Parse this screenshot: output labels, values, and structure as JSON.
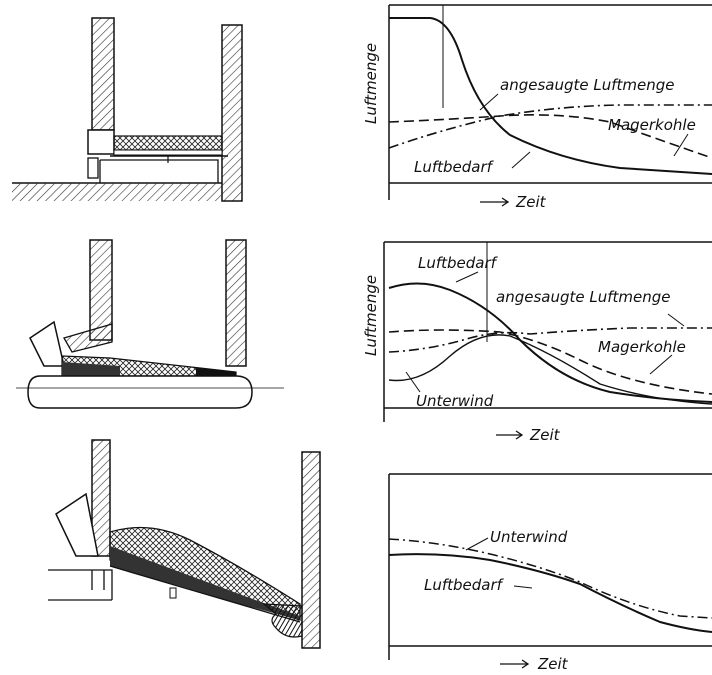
{
  "panels": [
    {
      "ylabel": "Luftmenge",
      "xlabel": "Zeit",
      "labels": [
        "angesaugte Luftmenge",
        "Magerkohle",
        "Luftbedarf"
      ]
    },
    {
      "ylabel": "Luftmenge",
      "xlabel": "Zeit",
      "labels": [
        "Luftbedarf",
        "angesaugte Luftmenge",
        "Magerkohle",
        "Unterwind"
      ]
    },
    {
      "ylabel": "",
      "xlabel": "Zeit",
      "labels": [
        "Unterwind",
        "Luftbedarf"
      ]
    }
  ]
}
